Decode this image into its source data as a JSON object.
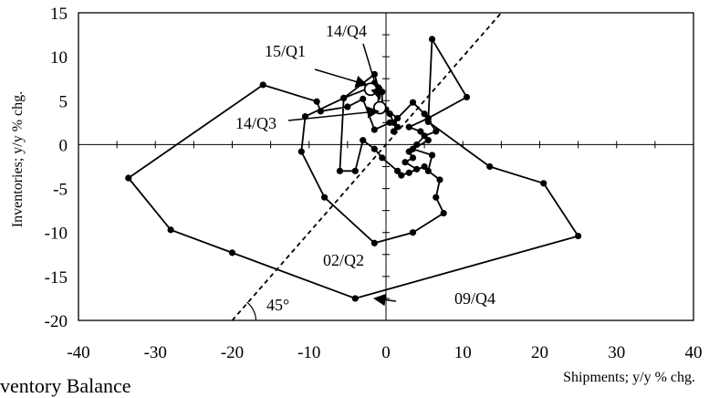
{
  "chart_data": {
    "type": "scatter",
    "title": "",
    "xlabel": "Shipments; y/y % chg.",
    "ylabel": "Inventories; y/y % chg.",
    "xlim": [
      -40,
      40
    ],
    "ylim": [
      -20,
      15
    ],
    "xticks": [
      -40,
      -30,
      -20,
      -10,
      0,
      10,
      20,
      30,
      40
    ],
    "yticks": [
      -20,
      -15,
      -10,
      -5,
      0,
      5,
      10,
      15
    ],
    "grid": false,
    "connected": true,
    "reference_line": {
      "slope": 1,
      "label": "45°"
    },
    "series": [
      {
        "points": [
          [
            0.5,
            2.5
          ],
          [
            -1.5,
            1.7
          ],
          [
            -3.0,
            5.2
          ],
          [
            -5.0,
            4.3
          ],
          [
            -8.5,
            3.8
          ],
          [
            -9.0,
            4.9
          ],
          [
            -16.0,
            6.8
          ],
          [
            -33.5,
            -3.8
          ],
          [
            -28.0,
            -9.7
          ],
          [
            -20.0,
            -12.3
          ],
          [
            -4.0,
            -17.5
          ],
          [
            25.0,
            -10.4
          ],
          [
            20.5,
            -4.4
          ],
          [
            13.5,
            -2.5
          ],
          [
            5.5,
            2.6
          ],
          [
            6.0,
            12.0
          ],
          [
            10.5,
            5.4
          ],
          [
            5.5,
            3.0
          ],
          [
            3.0,
            2.0
          ],
          [
            4.5,
            1.5
          ],
          [
            5.5,
            0.5
          ],
          [
            3.5,
            -0.5
          ],
          [
            6.0,
            -1.2
          ],
          [
            5.5,
            -3.0
          ],
          [
            7.0,
            -4.0
          ],
          [
            6.5,
            -6.0
          ],
          [
            7.5,
            -7.8
          ],
          [
            3.5,
            -10.0
          ],
          [
            -1.5,
            -11.2
          ],
          [
            -8.0,
            -6.0
          ],
          [
            -11.0,
            -0.8
          ],
          [
            -10.5,
            3.2
          ],
          [
            -5.5,
            5.3
          ],
          [
            -1.5,
            8.0
          ],
          [
            -1.0,
            6.5
          ],
          [
            -1.0,
            4.0
          ],
          [
            0.0,
            4.0
          ],
          [
            1.5,
            3.0
          ],
          [
            3.5,
            4.8
          ],
          [
            5.0,
            3.5
          ],
          [
            6.5,
            1.5
          ],
          [
            5.0,
            1.0
          ],
          [
            4.0,
            0.0
          ],
          [
            3.0,
            -0.8
          ],
          [
            3.5,
            -1.5
          ],
          [
            2.5,
            -2.0
          ],
          [
            4.0,
            -2.8
          ],
          [
            3.0,
            -3.2
          ],
          [
            5.0,
            -2.5
          ],
          [
            2.0,
            -3.5
          ],
          [
            1.5,
            -3.0
          ],
          [
            -0.5,
            -1.5
          ],
          [
            -1.5,
            -0.5
          ],
          [
            -3.0,
            0.5
          ],
          [
            -4.0,
            -3.0
          ],
          [
            -6.0,
            -3.0
          ],
          [
            -5.5,
            5.3
          ],
          [
            -2.0,
            6.5
          ],
          [
            -1.5,
            7.0
          ],
          [
            -0.5,
            6.0
          ],
          [
            -0.5,
            4.2
          ],
          [
            0.5,
            3.5
          ],
          [
            1.0,
            2.5
          ],
          [
            1.5,
            2.0
          ],
          [
            1.0,
            1.5
          ]
        ],
        "highlight": [
          [
            -2.0,
            6.3
          ],
          [
            -0.8,
            4.2
          ]
        ]
      }
    ],
    "annotations": [
      {
        "text": "14/Q4",
        "target": [
          -0.8,
          5.2
        ]
      },
      {
        "text": "15/Q1",
        "target": [
          -2.5,
          6.8
        ]
      },
      {
        "text": "14/Q3",
        "target": [
          -1.0,
          3.8
        ]
      },
      {
        "text": "02/Q2",
        "target": null
      },
      {
        "text": "09/Q4",
        "target": [
          -1.5,
          -17.5
        ]
      }
    ]
  },
  "caption": "ventory Balance"
}
